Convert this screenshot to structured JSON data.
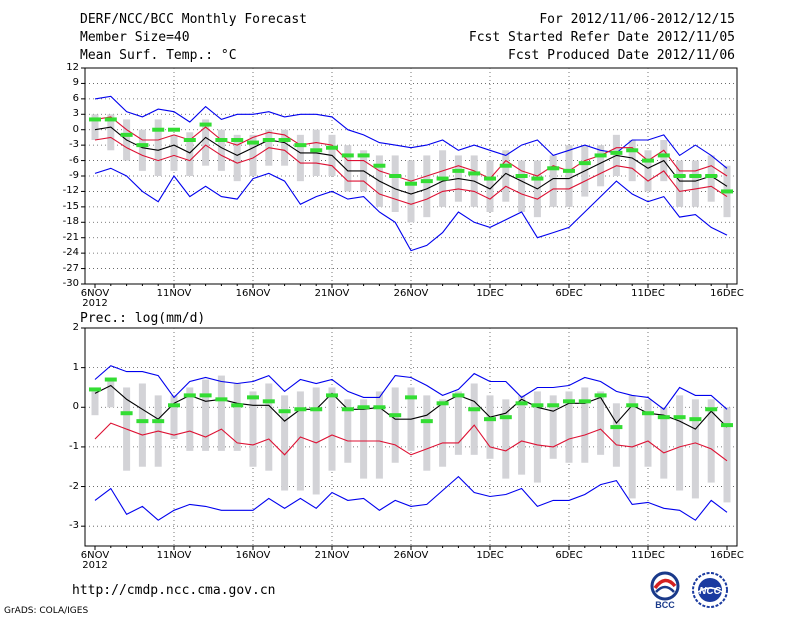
{
  "header": {
    "title": "DERF/NCC/BCC Monthly Forecast",
    "member_size": "Member Size=40",
    "variable": "Mean Surf. Temp.: °C",
    "fcst_period": "For 2012/11/06-2012/12/15",
    "fcst_started": "Fcst Started Refer Date 2012/11/05",
    "fcst_produced": "Fcst Produced Date 2012/11/06"
  },
  "footer": {
    "url": "http://cmdp.ncc.cma.gov.cn",
    "grads": "GrADS: COLA/IGES",
    "logo_bcc": "BCC",
    "logo_ncc": "NCC"
  },
  "colors": {
    "envelope": "#0000ee",
    "spread": "#dd1133",
    "mean": "#000000",
    "obs": "#33dd33",
    "box": "#d3d3d7"
  },
  "chart_data": [
    {
      "type": "line",
      "title": "Mean Surf. Temp.: °C",
      "xlabel": "",
      "ylabel": "°C",
      "ylim": [
        -30,
        12
      ],
      "yticks": [
        12,
        9,
        6,
        3,
        0,
        -3,
        -6,
        -9,
        -12,
        -15,
        -18,
        -21,
        -24,
        -27,
        -30
      ],
      "x_start": "2012-11-06",
      "x_days": 40,
      "xticks": [
        {
          "day": 0,
          "label": "6NOV",
          "sub": "2012"
        },
        {
          "day": 5,
          "label": "11NOV",
          "sub": ""
        },
        {
          "day": 10,
          "label": "16NOV",
          "sub": ""
        },
        {
          "day": 15,
          "label": "21NOV",
          "sub": ""
        },
        {
          "day": 20,
          "label": "26NOV",
          "sub": ""
        },
        {
          "day": 25,
          "label": "1DEC",
          "sub": ""
        },
        {
          "day": 30,
          "label": "6DEC",
          "sub": ""
        },
        {
          "day": 35,
          "label": "11DEC",
          "sub": ""
        },
        {
          "day": 40,
          "label": "16DEC",
          "sub": ""
        }
      ],
      "grid": true,
      "series": [
        {
          "name": "max",
          "color": "#0000ee",
          "values": [
            6,
            6.5,
            3.5,
            2.5,
            4,
            3.5,
            1.5,
            4.5,
            2,
            3,
            3,
            3.5,
            2.5,
            3,
            3,
            2.5,
            0,
            -1,
            -2.5,
            -3,
            -3.5,
            -3,
            -2,
            -4,
            -3,
            -4,
            -5,
            -3,
            -2,
            -5,
            -4,
            -3,
            -4,
            -4.5,
            -2,
            -2,
            -1,
            -5,
            -3,
            -5,
            -7.5
          ]
        },
        {
          "name": "upper",
          "color": "#dd1133",
          "values": [
            2,
            2.5,
            0,
            -2,
            -2,
            -1,
            -2,
            0.5,
            -2,
            -3,
            -1.5,
            -0.5,
            -1,
            -3,
            -2.5,
            -3,
            -6,
            -6,
            -8,
            -9,
            -10,
            -9,
            -8,
            -7,
            -8,
            -9.5,
            -6,
            -8,
            -9,
            -7,
            -8,
            -6,
            -5,
            -3.5,
            -3.5,
            -6,
            -4,
            -8,
            -8,
            -7,
            -9
          ]
        },
        {
          "name": "mean",
          "color": "#000000",
          "values": [
            0,
            0.5,
            -2,
            -3.5,
            -4,
            -3,
            -4.5,
            -1.5,
            -3.5,
            -5,
            -3.5,
            -2,
            -2.5,
            -4.5,
            -4.5,
            -5,
            -8,
            -8,
            -10,
            -11.5,
            -12.5,
            -11.5,
            -10,
            -9.5,
            -10,
            -11.5,
            -8.5,
            -10,
            -11.5,
            -9.5,
            -9.5,
            -8,
            -6.5,
            -5,
            -5.5,
            -7.5,
            -6,
            -10,
            -10,
            -9,
            -11
          ]
        },
        {
          "name": "lower",
          "color": "#dd1133",
          "values": [
            -2,
            -1.5,
            -3.5,
            -5,
            -6,
            -5,
            -6,
            -3,
            -5,
            -6.5,
            -5.5,
            -3.5,
            -4,
            -6.5,
            -6.5,
            -7,
            -10,
            -10,
            -12.5,
            -13.5,
            -14.5,
            -13.5,
            -12,
            -11.5,
            -12,
            -13.5,
            -11,
            -12.5,
            -13.5,
            -11.5,
            -11.5,
            -10,
            -8.5,
            -7,
            -7.5,
            -10,
            -8,
            -12,
            -11.5,
            -11,
            -13
          ]
        },
        {
          "name": "min",
          "color": "#0000ee",
          "values": [
            -8.5,
            -7.5,
            -9,
            -12,
            -14,
            -9,
            -13,
            -11,
            -13,
            -13.5,
            -9.5,
            -8.5,
            -10,
            -14.5,
            -13,
            -12,
            -13.5,
            -13,
            -16,
            -18,
            -23.5,
            -22.5,
            -20,
            -16,
            -18,
            -19,
            -17.5,
            -16,
            -21,
            -20,
            -19,
            -16,
            -13,
            -10,
            -12.5,
            -14,
            -13,
            -17,
            -16.5,
            -19,
            -20.5
          ]
        }
      ],
      "boxes": {
        "top": [
          3,
          3,
          2,
          0,
          2,
          -1,
          -0.5,
          2,
          0,
          -1,
          -1,
          0,
          0,
          -1,
          0,
          -1,
          -3,
          -4,
          -5,
          -5,
          -6,
          -5,
          -4,
          -5,
          -5,
          -6,
          -4,
          -6,
          -6,
          -5,
          -3,
          -3,
          -3,
          -1,
          -2,
          -4,
          -2,
          -6,
          -6,
          -5,
          -7
        ],
        "bottom": [
          -2,
          -4,
          -6,
          -8,
          -9,
          -8,
          -9,
          -7,
          -8,
          -10,
          -9,
          -7,
          -7,
          -10,
          -9,
          -9,
          -12,
          -12,
          -15,
          -16,
          -18,
          -17,
          -15,
          -14,
          -15,
          -16,
          -14,
          -16,
          -17,
          -15,
          -15,
          -13,
          -11,
          -9,
          -10,
          -12,
          -10,
          -15,
          -15,
          -14,
          -17
        ]
      },
      "observed": [
        2,
        2,
        -1,
        -3,
        0,
        0,
        -2,
        1,
        -2,
        -2,
        -2.5,
        -2,
        -2,
        -3,
        -4,
        -3.5,
        -5,
        -5,
        -7,
        -9,
        -10.5,
        -10,
        -9.5,
        -8,
        -8.5,
        -9.5,
        -7,
        -9,
        -9.5,
        -7.5,
        -8,
        -6.5,
        -5,
        -4.5,
        -4,
        -6,
        -5,
        -9,
        -9,
        -9,
        -12
      ]
    },
    {
      "type": "line",
      "title": "Prec.: log(mm/d)",
      "xlabel": "",
      "ylabel": "log(mm/d)",
      "ylim": [
        -3.5,
        2
      ],
      "yticks": [
        2,
        1,
        0,
        -1,
        -2,
        -3
      ],
      "x_start": "2012-11-06",
      "x_days": 40,
      "xticks": [
        {
          "day": 0,
          "label": "6NOV",
          "sub": "2012"
        },
        {
          "day": 5,
          "label": "11NOV",
          "sub": ""
        },
        {
          "day": 10,
          "label": "16NOV",
          "sub": ""
        },
        {
          "day": 15,
          "label": "21NOV",
          "sub": ""
        },
        {
          "day": 20,
          "label": "26NOV",
          "sub": ""
        },
        {
          "day": 25,
          "label": "1DEC",
          "sub": ""
        },
        {
          "day": 30,
          "label": "6DEC",
          "sub": ""
        },
        {
          "day": 35,
          "label": "11DEC",
          "sub": ""
        },
        {
          "day": 40,
          "label": "16DEC",
          "sub": ""
        }
      ],
      "grid": true,
      "series": [
        {
          "name": "max",
          "color": "#0000ee",
          "values": [
            0.7,
            1.05,
            0.9,
            0.9,
            0.8,
            0.25,
            0.65,
            0.75,
            0.65,
            0.6,
            0.65,
            0.8,
            0.4,
            0.7,
            0.6,
            0.7,
            0.4,
            0.25,
            0.25,
            0.8,
            0.75,
            0.55,
            0.3,
            0.45,
            0.85,
            0.65,
            0.65,
            0.25,
            0.5,
            0.5,
            0.55,
            0.75,
            0.65,
            0.4,
            0.3,
            0.25,
            -0.05,
            0.5,
            0.3,
            0.3,
            -0.05
          ]
        },
        {
          "name": "mean",
          "color": "#000000",
          "values": [
            0.35,
            0.55,
            0.2,
            -0.05,
            -0.3,
            0.1,
            0.3,
            0.15,
            0.2,
            0.1,
            0.05,
            0.05,
            -0.35,
            -0.05,
            -0.05,
            0.35,
            -0.05,
            -0.05,
            0,
            -0.3,
            -0.3,
            -0.2,
            0.1,
            0.3,
            0.15,
            -0.25,
            -0.15,
            0.2,
            0,
            -0.1,
            0.1,
            0.1,
            0.25,
            -0.4,
            0.05,
            -0.15,
            -0.2,
            -0.35,
            -0.55,
            -0.1,
            -0.5
          ]
        },
        {
          "name": "lower",
          "color": "#dd1133",
          "values": [
            -0.8,
            -0.4,
            -0.55,
            -0.7,
            -0.6,
            -0.7,
            -0.6,
            -0.75,
            -0.55,
            -0.9,
            -0.95,
            -0.8,
            -1.2,
            -0.75,
            -0.9,
            -0.7,
            -0.85,
            -0.85,
            -0.85,
            -0.95,
            -1.2,
            -1.05,
            -0.9,
            -0.9,
            -0.45,
            -1,
            -1.1,
            -0.85,
            -0.95,
            -1,
            -0.8,
            -0.7,
            -0.55,
            -0.95,
            -1,
            -0.85,
            -1.15,
            -1,
            -0.9,
            -1.05,
            -1.35
          ]
        },
        {
          "name": "min",
          "color": "#0000ee",
          "values": [
            -2.35,
            -2.05,
            -2.7,
            -2.5,
            -2.85,
            -2.6,
            -2.45,
            -2.5,
            -2.6,
            -2.6,
            -2.6,
            -2.3,
            -2.55,
            -2.3,
            -2.55,
            -2.15,
            -2.35,
            -2.3,
            -2.6,
            -2.35,
            -2.5,
            -2.45,
            -2.1,
            -1.75,
            -2.15,
            -2.25,
            -2.2,
            -2.05,
            -2.5,
            -2.35,
            -2.35,
            -2.2,
            -1.95,
            -1.85,
            -2.45,
            -2.4,
            -2.55,
            -2.6,
            -2.85,
            -2.35,
            -2.65
          ]
        }
      ],
      "boxes": {
        "top": [
          0.4,
          0.7,
          0.5,
          0.6,
          0.3,
          0.3,
          0.5,
          0.7,
          0.8,
          0.6,
          0.4,
          0.6,
          0.3,
          0.4,
          0.5,
          0.5,
          0.2,
          0.2,
          0.4,
          0.5,
          0.5,
          0.3,
          0.2,
          0.4,
          0.6,
          0.3,
          0.2,
          0.3,
          0.4,
          0.3,
          0.4,
          0.5,
          0.4,
          0.1,
          0.3,
          0.2,
          0,
          0.3,
          0.2,
          0.2,
          0
        ],
        "bottom": [
          -0.2,
          0,
          -1.6,
          -1.5,
          -1.5,
          -0.8,
          -1.1,
          -1.1,
          -1.1,
          -1.1,
          -1.5,
          -1.6,
          -2.1,
          -2.1,
          -2.2,
          -1.6,
          -1.4,
          -1.8,
          -1.8,
          -1.4,
          -1.1,
          -1.6,
          -1.5,
          -1.2,
          -1.2,
          -1.3,
          -1.8,
          -1.7,
          -1.9,
          -1.3,
          -1.4,
          -1.4,
          -1.2,
          -1.5,
          -2.3,
          -1.5,
          -1.8,
          -2.1,
          -2.3,
          -1.9,
          -2.4
        ]
      },
      "observed": [
        0.45,
        0.7,
        -0.15,
        -0.35,
        -0.35,
        0.05,
        0.3,
        0.3,
        0.2,
        0.05,
        0.25,
        0.15,
        -0.1,
        -0.05,
        -0.05,
        0.3,
        -0.05,
        0,
        0,
        -0.2,
        0.25,
        -0.35,
        0.1,
        0.3,
        -0.05,
        -0.3,
        -0.25,
        0.1,
        0.05,
        0.05,
        0.15,
        0.15,
        0.3,
        -0.5,
        0.05,
        -0.15,
        -0.25,
        -0.25,
        -0.3,
        -0.05,
        -0.45
      ]
    }
  ]
}
